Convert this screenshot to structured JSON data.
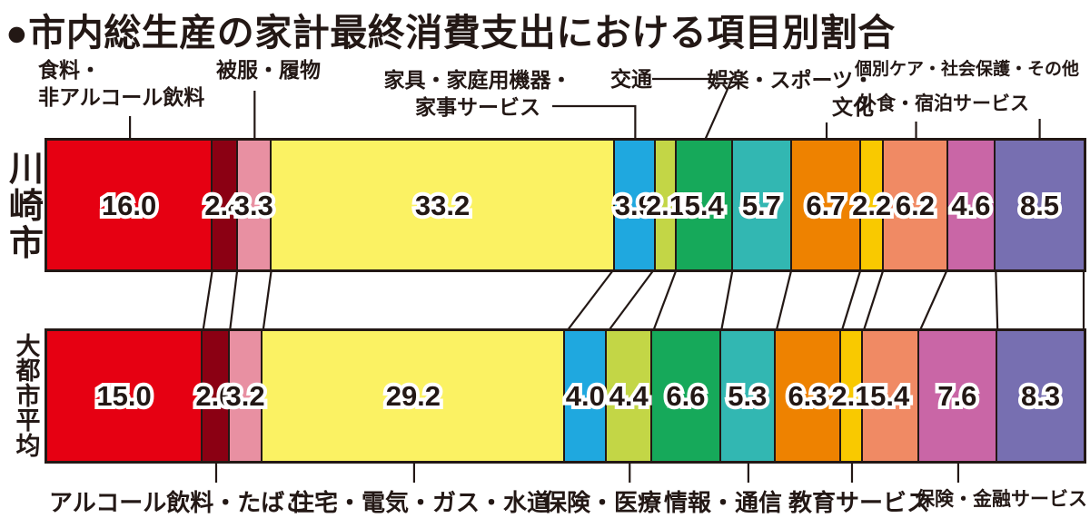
{
  "title": "●市内総生産の家計最終消費支出における項目別割合",
  "colors": {
    "ink": "#231815",
    "background": "#ffffff",
    "value_text": "#231815",
    "value_outline": "#ffffff"
  },
  "chart_data": {
    "type": "bar",
    "variant": "horizontal-stacked-percentage-comparison",
    "title": "市内総生産の家計最終消費支出における項目別割合",
    "unit": "%",
    "legend_position": "none",
    "grid": false,
    "categories": [
      {
        "label": "食料・非アルコール飲料",
        "display_lines": [
          "食料・",
          "非アルコール飲料"
        ],
        "label_side": "top",
        "color": "#e60012"
      },
      {
        "label": "アルコール飲料・たばこ",
        "display_lines": [
          "アルコール飲料・たばこ"
        ],
        "label_side": "bottom",
        "color": "#8b0013"
      },
      {
        "label": "被服・履物",
        "display_lines": [
          "被服・履物"
        ],
        "label_side": "top",
        "color": "#e890a2"
      },
      {
        "label": "住宅・電気・ガス・水道",
        "display_lines": [
          "住宅・電気・ガス・水道"
        ],
        "label_side": "bottom",
        "color": "#fbf263"
      },
      {
        "label": "家具・家庭用機器・家事サービス",
        "display_lines": [
          "家具・家庭用機器・",
          "家事サービス"
        ],
        "label_side": "top",
        "color": "#1fa8df"
      },
      {
        "label": "保険・医療",
        "display_lines": [
          "保険・医療"
        ],
        "label_side": "bottom",
        "color": "#c3d646"
      },
      {
        "label": "交通",
        "display_lines": [
          "交通"
        ],
        "label_side": "top",
        "color": "#16a95a"
      },
      {
        "label": "情報・通信",
        "display_lines": [
          "情報・通信"
        ],
        "label_side": "bottom",
        "color": "#32b7b2"
      },
      {
        "label": "娯楽・スポーツ・文化",
        "display_lines": [
          "娯楽・スポーツ・",
          "文化"
        ],
        "label_side": "top",
        "color": "#ee8200"
      },
      {
        "label": "教育サービス",
        "display_lines": [
          "教育サービス"
        ],
        "label_side": "bottom",
        "color": "#f9c900"
      },
      {
        "label": "外食・宿泊サービス",
        "display_lines": [
          "外食・宿泊サービス"
        ],
        "label_side": "top",
        "color": "#f08a64"
      },
      {
        "label": "保険・金融サービス",
        "display_lines": [
          "保険・金融サービス"
        ],
        "label_side": "bottom",
        "color": "#c966a6"
      },
      {
        "label": "個別ケア・社会保護・その他",
        "display_lines": [
          "個別ケア・社会保護・その他"
        ],
        "label_side": "top",
        "color": "#776fb1"
      }
    ],
    "series": [
      {
        "name": "川崎市",
        "values": [
          16.0,
          2.4,
          3.3,
          33.2,
          3.9,
          2.1,
          5.4,
          5.7,
          6.7,
          2.2,
          6.2,
          4.6,
          8.5
        ]
      },
      {
        "name": "大都市平均",
        "values": [
          15.0,
          2.6,
          3.2,
          29.2,
          4.0,
          4.4,
          6.6,
          5.3,
          6.3,
          2.1,
          5.4,
          7.6,
          8.3
        ]
      }
    ]
  }
}
